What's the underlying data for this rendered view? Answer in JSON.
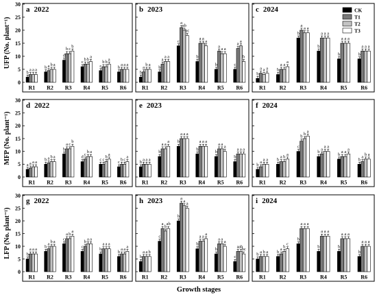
{
  "figure": {
    "xlabel": "Growth stages",
    "colors": {
      "CK": "#000000",
      "T1": "#7a7a7a",
      "T2": "#c4c4c4",
      "T3": "#ffffff"
    }
  },
  "legend": [
    "CK",
    "T1",
    "T2",
    "T3"
  ],
  "chart_data": [
    {
      "id": "a",
      "letter": "a",
      "year": "2022",
      "type": "bar",
      "ylabel": "UFP (No. plant⁻¹)",
      "ylim": [
        0,
        30
      ],
      "yticks": [
        0,
        5,
        10,
        15,
        20,
        25,
        30
      ],
      "categories": [
        "R1",
        "R2",
        "R3",
        "R4",
        "R5",
        "R6"
      ],
      "series": [
        {
          "name": "CK",
          "values": [
            2.0,
            4.0,
            8.5,
            6.0,
            4.5,
            4.0
          ]
        },
        {
          "name": "T1",
          "values": [
            3.0,
            4.5,
            11.0,
            7.0,
            6.0,
            5.0
          ]
        },
        {
          "name": "T2",
          "values": [
            3.0,
            5.0,
            11.0,
            7.0,
            6.0,
            5.0
          ]
        },
        {
          "name": "T3",
          "values": [
            3.0,
            5.0,
            12.0,
            8.0,
            7.0,
            5.0
          ]
        }
      ],
      "sig": [
        [
          "b",
          "a",
          "a",
          "a"
        ],
        [
          "b",
          "a",
          "b",
          "a"
        ],
        [
          "d",
          "b",
          "c",
          "b"
        ],
        [
          "c",
          "b",
          "b",
          "a"
        ],
        [
          "c",
          "b",
          "b",
          "a"
        ],
        [
          "b",
          "a",
          "a",
          "a"
        ]
      ]
    },
    {
      "id": "b",
      "letter": "b",
      "year": "2023",
      "type": "bar",
      "ylabel": "UFP (No. plant⁻¹)",
      "ylim": [
        0,
        30
      ],
      "yticks": [
        0,
        5,
        10,
        15,
        20,
        25,
        30
      ],
      "categories": [
        "R1",
        "R2",
        "R3",
        "R4",
        "R5",
        "R6"
      ],
      "series": [
        {
          "name": "CK",
          "values": [
            2.0,
            4.0,
            14.0,
            8.0,
            5.0,
            5.0
          ]
        },
        {
          "name": "T1",
          "values": [
            4.0,
            7.0,
            21.0,
            15.0,
            12.0,
            13.0
          ]
        },
        {
          "name": "T2",
          "values": [
            5.0,
            8.0,
            20.0,
            15.0,
            11.0,
            14.0
          ]
        },
        {
          "name": "T3",
          "values": [
            5.0,
            8.0,
            18.0,
            14.0,
            11.0,
            8.0
          ]
        }
      ],
      "sig": [
        [
          "b",
          "a",
          "b",
          "a"
        ],
        [
          "b",
          "a",
          "a",
          "a"
        ],
        [
          "c",
          "a",
          "ab",
          "bc"
        ],
        [
          "b",
          "a",
          "a",
          "a"
        ],
        [
          "b",
          "a",
          "a",
          "a"
        ],
        [
          "c",
          "a",
          "a",
          "b"
        ]
      ]
    },
    {
      "id": "c",
      "letter": "c",
      "year": "2024",
      "type": "bar",
      "ylabel": "UFP (No. plant⁻¹)",
      "ylim": [
        0,
        30
      ],
      "yticks": [
        0,
        5,
        10,
        15,
        20,
        25,
        30
      ],
      "categories": [
        "R1",
        "R2",
        "R3",
        "R4",
        "R5",
        "R6"
      ],
      "series": [
        {
          "name": "CK",
          "values": [
            1.5,
            3.0,
            17.0,
            12.0,
            9.0,
            9.0
          ]
        },
        {
          "name": "T1",
          "values": [
            3.5,
            5.0,
            20.0,
            17.0,
            15.0,
            12.0
          ]
        },
        {
          "name": "T2",
          "values": [
            3.0,
            5.0,
            19.0,
            17.0,
            15.0,
            12.0
          ]
        },
        {
          "name": "T3",
          "values": [
            3.5,
            6.0,
            19.0,
            17.0,
            15.0,
            12.0
          ]
        }
      ],
      "sig": [
        [
          "b",
          "a",
          "a",
          "a"
        ],
        [
          "b",
          "a",
          "a",
          "a"
        ],
        [
          "b",
          "a",
          "a",
          "a"
        ],
        [
          "b",
          "a",
          "a",
          "a"
        ],
        [
          "b",
          "a",
          "a",
          "a"
        ],
        [
          "b",
          "a",
          "a",
          "a"
        ]
      ]
    },
    {
      "id": "d",
      "letter": "d",
      "year": "2022",
      "type": "bar",
      "ylabel": "MFP (No. plant⁻¹)",
      "ylim": [
        0,
        30
      ],
      "yticks": [
        0,
        5,
        10,
        15,
        20,
        25,
        30
      ],
      "categories": [
        "R1",
        "R2",
        "R3",
        "R4",
        "R5",
        "R6"
      ],
      "series": [
        {
          "name": "CK",
          "values": [
            3.0,
            5.0,
            9.0,
            6.0,
            5.0,
            4.0
          ]
        },
        {
          "name": "T1",
          "values": [
            3.5,
            5.5,
            11.0,
            7.0,
            5.0,
            5.0
          ]
        },
        {
          "name": "T2",
          "values": [
            4.0,
            6.0,
            11.0,
            8.0,
            6.0,
            5.0
          ]
        },
        {
          "name": "T3",
          "values": [
            4.0,
            6.0,
            12.0,
            8.0,
            7.0,
            6.0
          ]
        }
      ],
      "sig": [
        [
          "a",
          "a",
          "a",
          "a"
        ],
        [
          "b",
          "a",
          "b",
          "a"
        ],
        [
          "b",
          "a",
          "c",
          "b"
        ],
        [
          "d",
          "c",
          "b",
          "a"
        ],
        [
          "c",
          "c",
          "b",
          "a"
        ],
        [
          "c",
          "b",
          "c",
          "a"
        ]
      ]
    },
    {
      "id": "e",
      "letter": "e",
      "year": "2023",
      "type": "bar",
      "ylabel": "MFP (No. plant⁻¹)",
      "ylim": [
        0,
        30
      ],
      "yticks": [
        0,
        5,
        10,
        15,
        20,
        25,
        30
      ],
      "categories": [
        "R1",
        "R2",
        "R3",
        "R4",
        "R5",
        "R6"
      ],
      "series": [
        {
          "name": "CK",
          "values": [
            4.0,
            8.0,
            12.0,
            9.0,
            8.0,
            6.0
          ]
        },
        {
          "name": "T1",
          "values": [
            5.0,
            11.0,
            15.0,
            12.0,
            11.0,
            9.0
          ]
        },
        {
          "name": "T2",
          "values": [
            5.0,
            11.0,
            15.0,
            12.0,
            11.0,
            9.0
          ]
        },
        {
          "name": "T3",
          "values": [
            5.0,
            12.0,
            15.0,
            12.0,
            10.0,
            9.0
          ]
        }
      ],
      "sig": [
        [
          "b",
          "a",
          "a",
          "a"
        ],
        [
          "b",
          "a",
          "a",
          "a"
        ],
        [
          "b",
          "a",
          "a",
          "a"
        ],
        [
          "b",
          "a",
          "a",
          "a"
        ],
        [
          "b",
          "a",
          "a",
          "a"
        ],
        [
          "b",
          "a",
          "a",
          "a"
        ]
      ]
    },
    {
      "id": "f",
      "letter": "f",
      "year": "2024",
      "type": "bar",
      "ylabel": "MFP (No. plant⁻¹)",
      "ylim": [
        0,
        30
      ],
      "yticks": [
        0,
        5,
        10,
        15,
        20,
        25,
        30
      ],
      "categories": [
        "R1",
        "R2",
        "R3",
        "R4",
        "R5",
        "R6"
      ],
      "series": [
        {
          "name": "CK",
          "values": [
            3.0,
            5.0,
            10.0,
            8.0,
            7.0,
            5.0
          ]
        },
        {
          "name": "T1",
          "values": [
            4.0,
            6.0,
            14.0,
            9.0,
            8.0,
            6.0
          ]
        },
        {
          "name": "T2",
          "values": [
            5.0,
            6.0,
            15.0,
            10.0,
            8.0,
            7.0
          ]
        },
        {
          "name": "T3",
          "values": [
            5.0,
            7.0,
            16.0,
            10.0,
            9.0,
            7.0
          ]
        }
      ],
      "sig": [
        [
          "b",
          "a",
          "a",
          "a"
        ],
        [
          "b",
          "a",
          "b",
          "a"
        ],
        [
          "c",
          "b",
          "b",
          "a"
        ],
        [
          "b",
          "a",
          "a",
          "a"
        ],
        [
          "b",
          "a",
          "a",
          "a"
        ],
        [
          "b",
          "a",
          "b",
          "a"
        ]
      ]
    },
    {
      "id": "g",
      "letter": "g",
      "year": "2022",
      "type": "bar",
      "ylabel": "LFP (No. plant⁻¹)",
      "ylim": [
        0,
        30
      ],
      "yticks": [
        0,
        5,
        10,
        15,
        20,
        25,
        30
      ],
      "categories": [
        "R1",
        "R2",
        "R3",
        "R4",
        "R5",
        "R6"
      ],
      "series": [
        {
          "name": "CK",
          "values": [
            5.0,
            8.0,
            11.0,
            8.0,
            7.0,
            6.0
          ]
        },
        {
          "name": "T1",
          "values": [
            7.0,
            9.0,
            13.0,
            10.0,
            9.0,
            7.0
          ]
        },
        {
          "name": "T2",
          "values": [
            7.0,
            10.0,
            13.0,
            11.0,
            9.0,
            7.0
          ]
        },
        {
          "name": "T3",
          "values": [
            7.0,
            10.0,
            14.0,
            11.0,
            9.0,
            8.0
          ]
        }
      ],
      "sig": [
        [
          "b",
          "a",
          "a",
          "a"
        ],
        [
          "b",
          "a",
          "b",
          "a"
        ],
        [
          "c",
          "a",
          "b",
          "a"
        ],
        [
          "c",
          "b",
          "a",
          "a"
        ],
        [
          "b",
          "a",
          "a",
          "a"
        ],
        [
          "b",
          "a",
          "a",
          "a"
        ]
      ]
    },
    {
      "id": "h",
      "letter": "h",
      "year": "2023",
      "type": "bar",
      "ylabel": "LFP (No. plant⁻¹)",
      "ylim": [
        0,
        30
      ],
      "yticks": [
        0,
        5,
        10,
        15,
        20,
        25,
        30
      ],
      "categories": [
        "R1",
        "R2",
        "R3",
        "R4",
        "R5",
        "R6"
      ],
      "series": [
        {
          "name": "CK",
          "values": [
            4.0,
            12.0,
            20.0,
            9.0,
            7.0,
            4.0
          ]
        },
        {
          "name": "T1",
          "values": [
            6.0,
            17.0,
            27.0,
            12.0,
            11.0,
            8.0
          ]
        },
        {
          "name": "T2",
          "values": [
            6.0,
            16.0,
            26.0,
            12.0,
            11.0,
            8.0
          ]
        },
        {
          "name": "T3",
          "values": [
            6.0,
            17.0,
            25.0,
            13.0,
            10.0,
            7.0
          ]
        }
      ],
      "sig": [
        [
          "b",
          "a",
          "a",
          "b"
        ],
        [
          "c",
          "a",
          "b",
          "ab"
        ],
        [
          "b",
          "a",
          "a",
          "a"
        ],
        [
          "b",
          "a",
          "a",
          "a"
        ],
        [
          "b",
          "a",
          "a",
          "a"
        ],
        [
          "c",
          "a",
          "ab",
          "bc"
        ]
      ]
    },
    {
      "id": "i",
      "letter": "i",
      "year": "2024",
      "type": "bar",
      "ylabel": "LFP (No. plant⁻¹)",
      "ylim": [
        0,
        30
      ],
      "yticks": [
        0,
        5,
        10,
        15,
        20,
        25,
        30
      ],
      "categories": [
        "R1",
        "R2",
        "R3",
        "R4",
        "R5",
        "R6"
      ],
      "series": [
        {
          "name": "CK",
          "values": [
            5.0,
            6.0,
            11.0,
            8.0,
            8.0,
            6.0
          ]
        },
        {
          "name": "T1",
          "values": [
            6.0,
            7.0,
            17.0,
            14.0,
            13.0,
            10.0
          ]
        },
        {
          "name": "T2",
          "values": [
            6.0,
            8.0,
            17.0,
            14.0,
            13.0,
            10.0
          ]
        },
        {
          "name": "T3",
          "values": [
            6.0,
            9.0,
            17.0,
            14.0,
            13.0,
            10.0
          ]
        }
      ],
      "sig": [
        [
          "b",
          "a",
          "b",
          "a"
        ],
        [
          "b",
          "a",
          "b",
          "c"
        ],
        [
          "b",
          "a",
          "a",
          "a"
        ],
        [
          "b",
          "a",
          "a",
          "a"
        ],
        [
          "b",
          "a",
          "a",
          "a"
        ],
        [
          "b",
          "a",
          "a",
          "a"
        ]
      ]
    }
  ]
}
